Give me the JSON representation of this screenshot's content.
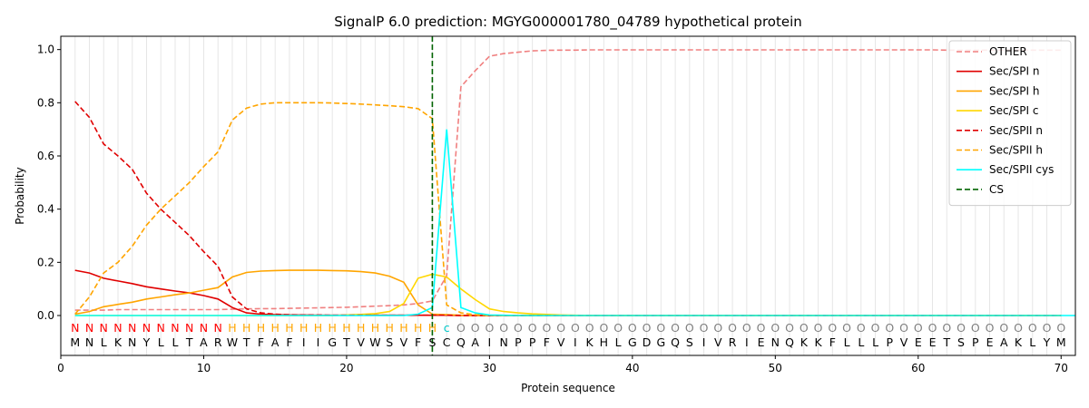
{
  "chart_data": {
    "type": "line",
    "title": "SignalP 6.0 prediction: MGYG000001780_04789 hypothetical protein",
    "xlabel": "Protein sequence",
    "ylabel": "Probability",
    "xlim": [
      0,
      71
    ],
    "ylim": [
      -0.15,
      1.05
    ],
    "xticks": [
      0,
      10,
      20,
      30,
      40,
      50,
      60,
      70
    ],
    "yticks": [
      0.0,
      0.2,
      0.4,
      0.6,
      0.8,
      1.0
    ],
    "legend_position": "top-right",
    "grid": "vertical lines at each residue",
    "sequence": [
      "M",
      "N",
      "L",
      "K",
      "N",
      "Y",
      "L",
      "L",
      "T",
      "A",
      "R",
      "W",
      "T",
      "F",
      "A",
      "F",
      "I",
      "I",
      "G",
      "T",
      "V",
      "W",
      "S",
      "V",
      "F",
      "S",
      "C",
      "Q",
      "A",
      "I",
      "N",
      "P",
      "P",
      "F",
      "V",
      "I",
      "K",
      "H",
      "L",
      "G",
      "D",
      "G",
      "Q",
      "S",
      "I",
      "V",
      "R",
      "I",
      "E",
      "N",
      "Q",
      "K",
      "K",
      "F",
      "L",
      "L",
      "L",
      "P",
      "V",
      "E",
      "E",
      "T",
      "S",
      "P",
      "E",
      "A",
      "K",
      "L",
      "Y",
      "M"
    ],
    "annotation": [
      "N",
      "N",
      "N",
      "N",
      "N",
      "N",
      "N",
      "N",
      "N",
      "N",
      "N",
      "H",
      "H",
      "H",
      "H",
      "H",
      "H",
      "H",
      "H",
      "H",
      "H",
      "H",
      "H",
      "H",
      "H",
      "H",
      "c",
      "O",
      "O",
      "O",
      "O",
      "O",
      "O",
      "O",
      "O",
      "O",
      "O",
      "O",
      "O",
      "O",
      "O",
      "O",
      "O",
      "O",
      "O",
      "O",
      "O",
      "O",
      "O",
      "O",
      "O",
      "O",
      "O",
      "O",
      "O",
      "O",
      "O",
      "O",
      "O",
      "O",
      "O",
      "O",
      "O",
      "O",
      "O",
      "O",
      "O",
      "O",
      "O",
      "O"
    ],
    "annotation_colors": {
      "N": "#ff0000",
      "H": "#ffa500",
      "c": "#00c8c8",
      "O": "#808080"
    },
    "cleavage_site": 26,
    "series": [
      {
        "name": "OTHER",
        "color": "#f08080",
        "dash": "dashed",
        "values": [
          0.02,
          0.02,
          0.02,
          0.022,
          0.022,
          0.022,
          0.022,
          0.022,
          0.022,
          0.022,
          0.022,
          0.024,
          0.025,
          0.026,
          0.026,
          0.027,
          0.028,
          0.029,
          0.03,
          0.031,
          0.033,
          0.035,
          0.037,
          0.04,
          0.045,
          0.055,
          0.15,
          0.86,
          0.92,
          0.975,
          0.985,
          0.99,
          0.995,
          0.997,
          0.998,
          0.998,
          0.999,
          0.999,
          0.999,
          0.999,
          0.999,
          0.999,
          0.999,
          0.999,
          0.999,
          0.999,
          0.999,
          0.999,
          0.999,
          0.999,
          0.999,
          0.999,
          0.999,
          0.999,
          0.999,
          0.999,
          0.999,
          0.999,
          0.999,
          0.999,
          0.999,
          0.998,
          0.998,
          0.998,
          0.998,
          0.998,
          0.998,
          0.998,
          0.998,
          0.998
        ]
      },
      {
        "name": "Sec/SPI n",
        "color": "#e00000",
        "dash": "solid",
        "values": [
          0.17,
          0.16,
          0.14,
          0.13,
          0.12,
          0.108,
          0.1,
          0.092,
          0.085,
          0.075,
          0.062,
          0.03,
          0.01,
          0.005,
          0.003,
          0.002,
          0.002,
          0.001,
          0.001,
          0.001,
          0.001,
          0.001,
          0.001,
          0.001,
          0.001,
          0.001,
          0.001,
          0,
          0,
          0,
          0,
          0,
          0,
          0,
          0,
          0,
          0,
          0,
          0,
          0,
          0,
          0,
          0,
          0,
          0,
          0,
          0,
          0,
          0,
          0,
          0,
          0,
          0,
          0,
          0,
          0,
          0,
          0,
          0,
          0,
          0,
          0,
          0,
          0,
          0,
          0,
          0,
          0,
          0,
          0
        ]
      },
      {
        "name": "Sec/SPI h",
        "color": "#ffa500",
        "dash": "solid",
        "values": [
          0.005,
          0.015,
          0.033,
          0.042,
          0.05,
          0.062,
          0.07,
          0.078,
          0.085,
          0.095,
          0.105,
          0.145,
          0.162,
          0.167,
          0.169,
          0.17,
          0.17,
          0.17,
          0.169,
          0.168,
          0.165,
          0.16,
          0.148,
          0.125,
          0.04,
          0.005,
          0.003,
          0.001,
          0,
          0,
          0,
          0,
          0,
          0,
          0,
          0,
          0,
          0,
          0,
          0,
          0,
          0,
          0,
          0,
          0,
          0,
          0,
          0,
          0,
          0,
          0,
          0,
          0,
          0,
          0,
          0,
          0,
          0,
          0,
          0,
          0,
          0,
          0,
          0,
          0,
          0,
          0,
          0,
          0,
          0
        ]
      },
      {
        "name": "Sec/SPI c",
        "color": "#ffd700",
        "dash": "solid",
        "values": [
          0,
          0,
          0,
          0,
          0,
          0,
          0,
          0,
          0,
          0,
          0,
          0,
          0,
          0,
          0,
          0,
          0,
          0,
          0,
          0.002,
          0.004,
          0.007,
          0.015,
          0.045,
          0.14,
          0.155,
          0.145,
          0.1,
          0.06,
          0.025,
          0.015,
          0.01,
          0.006,
          0.004,
          0.002,
          0.001,
          0,
          0,
          0,
          0,
          0,
          0,
          0,
          0,
          0,
          0,
          0,
          0,
          0,
          0,
          0,
          0,
          0,
          0,
          0,
          0,
          0,
          0,
          0,
          0,
          0,
          0,
          0,
          0,
          0,
          0,
          0,
          0,
          0,
          0
        ]
      },
      {
        "name": "Sec/SPII n",
        "color": "#e00000",
        "dash": "dashed",
        "values": [
          0.805,
          0.745,
          0.645,
          0.6,
          0.55,
          0.46,
          0.4,
          0.35,
          0.3,
          0.24,
          0.185,
          0.07,
          0.025,
          0.01,
          0.005,
          0.003,
          0.002,
          0.002,
          0.001,
          0.001,
          0.001,
          0.001,
          0.001,
          0.001,
          0.001,
          0.001,
          0.001,
          0,
          0,
          0,
          0,
          0,
          0,
          0,
          0,
          0,
          0,
          0,
          0,
          0,
          0,
          0,
          0,
          0,
          0,
          0,
          0,
          0,
          0,
          0,
          0,
          0,
          0,
          0,
          0,
          0,
          0,
          0,
          0,
          0,
          0,
          0,
          0,
          0,
          0,
          0,
          0,
          0,
          0,
          0
        ]
      },
      {
        "name": "Sec/SPII h",
        "color": "#ffa500",
        "dash": "dashed",
        "values": [
          0.005,
          0.07,
          0.16,
          0.2,
          0.26,
          0.34,
          0.4,
          0.45,
          0.5,
          0.56,
          0.615,
          0.735,
          0.78,
          0.795,
          0.8,
          0.8,
          0.8,
          0.8,
          0.799,
          0.797,
          0.795,
          0.792,
          0.789,
          0.785,
          0.778,
          0.74,
          0.04,
          0.01,
          0.003,
          0.001,
          0,
          0,
          0,
          0,
          0,
          0,
          0,
          0,
          0,
          0,
          0,
          0,
          0,
          0,
          0,
          0,
          0,
          0,
          0,
          0,
          0,
          0,
          0,
          0,
          0,
          0,
          0,
          0,
          0,
          0,
          0,
          0,
          0,
          0,
          0,
          0,
          0,
          0,
          0,
          0
        ]
      },
      {
        "name": "Sec/SPII cys",
        "color": "#00ffff",
        "dash": "solid",
        "values": [
          0,
          0,
          0,
          0,
          0,
          0,
          0,
          0,
          0,
          0,
          0,
          0,
          0,
          0,
          0,
          0,
          0,
          0,
          0,
          0,
          0,
          0,
          0,
          0,
          0.005,
          0.03,
          0.7,
          0.03,
          0.01,
          0.002,
          0.001,
          0,
          0,
          0,
          0,
          0,
          0,
          0,
          0,
          0,
          0,
          0,
          0,
          0,
          0,
          0,
          0,
          0,
          0,
          0,
          0,
          0,
          0,
          0,
          0,
          0,
          0,
          0,
          0,
          0,
          0,
          0,
          0,
          0,
          0,
          0,
          0,
          0,
          0,
          0,
          0
        ]
      }
    ],
    "cs_legend": {
      "name": "CS",
      "color": "#006400",
      "dash": "dashed"
    }
  }
}
